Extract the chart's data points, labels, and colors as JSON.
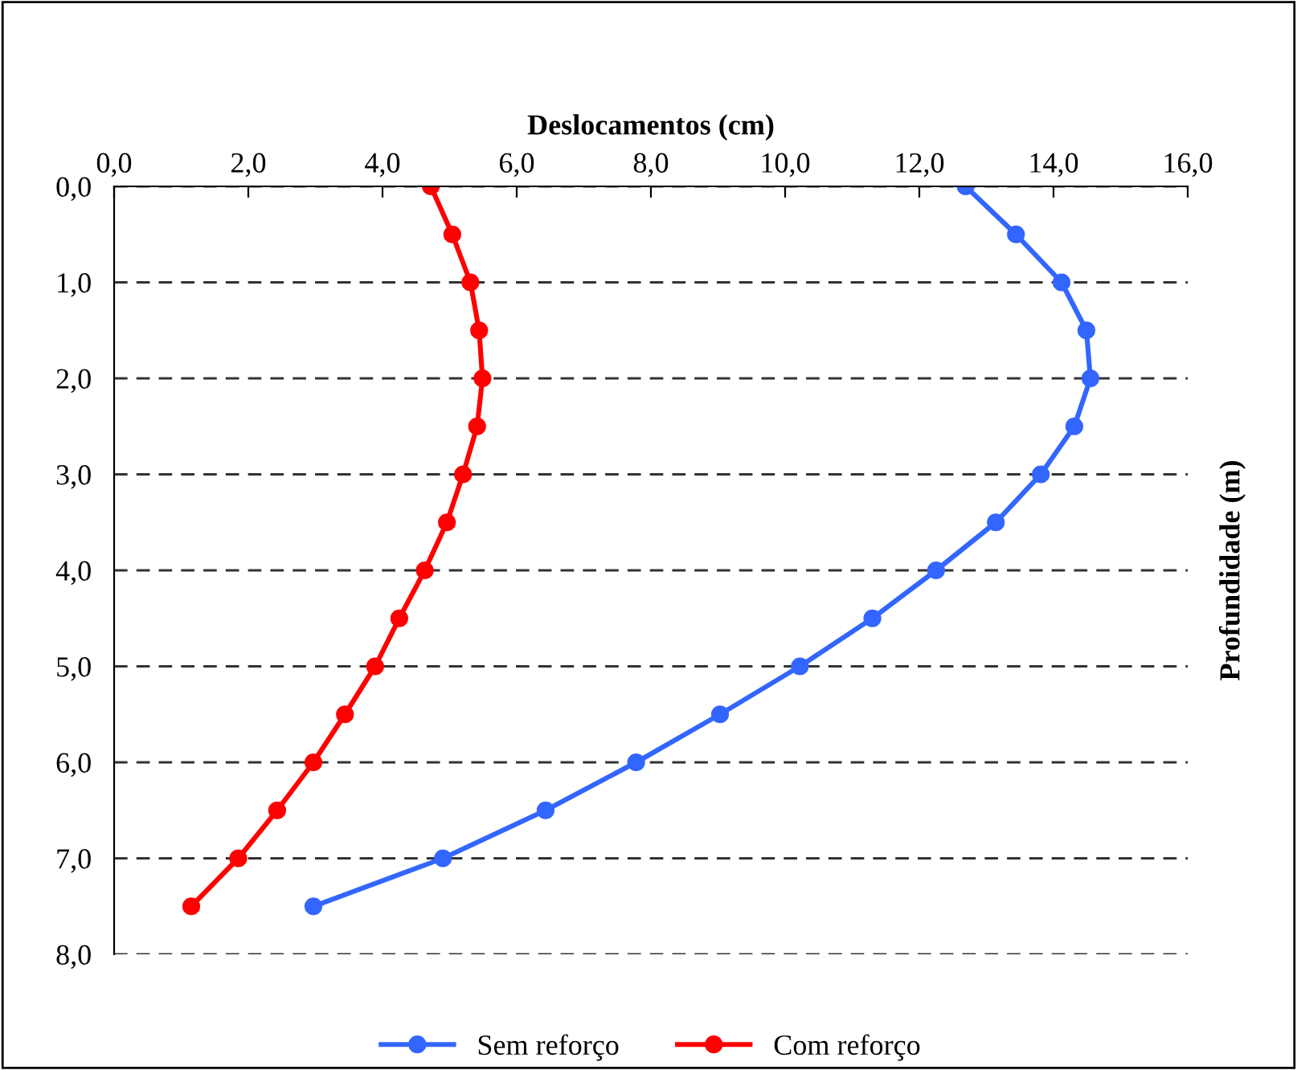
{
  "chart_data": {
    "type": "line",
    "xlabel": "Deslocamentos (cm)",
    "ylabel": "Profundidade (m)",
    "xlim": [
      0,
      16
    ],
    "xticks": [
      {
        "value": 0,
        "label": "0,0"
      },
      {
        "value": 2,
        "label": "2,0"
      },
      {
        "value": 4,
        "label": "4,0"
      },
      {
        "value": 6,
        "label": "6,0"
      },
      {
        "value": 8,
        "label": "8,0"
      },
      {
        "value": 10,
        "label": "10,0"
      },
      {
        "value": 12,
        "label": "12,0"
      },
      {
        "value": 14,
        "label": "14,0"
      },
      {
        "value": 16,
        "label": "16,0"
      }
    ],
    "ylim": [
      8,
      0
    ],
    "yticks": [
      {
        "value": 0,
        "label": "0,0"
      },
      {
        "value": 1,
        "label": "1,0"
      },
      {
        "value": 2,
        "label": "2,0"
      },
      {
        "value": 3,
        "label": "3,0"
      },
      {
        "value": 4,
        "label": "4,0"
      },
      {
        "value": 5,
        "label": "5,0"
      },
      {
        "value": 6,
        "label": "6,0"
      },
      {
        "value": 7,
        "label": "7,0"
      },
      {
        "value": 8,
        "label": "8,0"
      }
    ],
    "grid": "y",
    "legend": "bottom",
    "marker": "circle",
    "line_style": "solid",
    "series": [
      {
        "name": "Sem reforço",
        "color": "#3366ff",
        "x": [
          12.69,
          13.44,
          14.12,
          14.49,
          14.55,
          14.31,
          13.81,
          13.14,
          12.25,
          11.3,
          10.22,
          9.03,
          7.78,
          6.43,
          4.9,
          2.97
        ],
        "values": [
          0,
          0.5,
          1,
          1.5,
          2,
          2.5,
          3,
          3.5,
          4,
          4.5,
          5,
          5.5,
          6,
          6.5,
          7,
          7.5
        ]
      },
      {
        "name": "Com reforço",
        "color": "#ff0000",
        "x": [
          4.72,
          5.04,
          5.31,
          5.44,
          5.49,
          5.41,
          5.2,
          4.96,
          4.63,
          4.25,
          3.89,
          3.44,
          2.97,
          2.43,
          1.85,
          1.15
        ],
        "values": [
          0,
          0.5,
          1,
          1.5,
          2,
          2.5,
          3,
          3.5,
          4,
          4.5,
          5,
          5.5,
          6,
          6.5,
          7,
          7.5
        ]
      }
    ]
  }
}
